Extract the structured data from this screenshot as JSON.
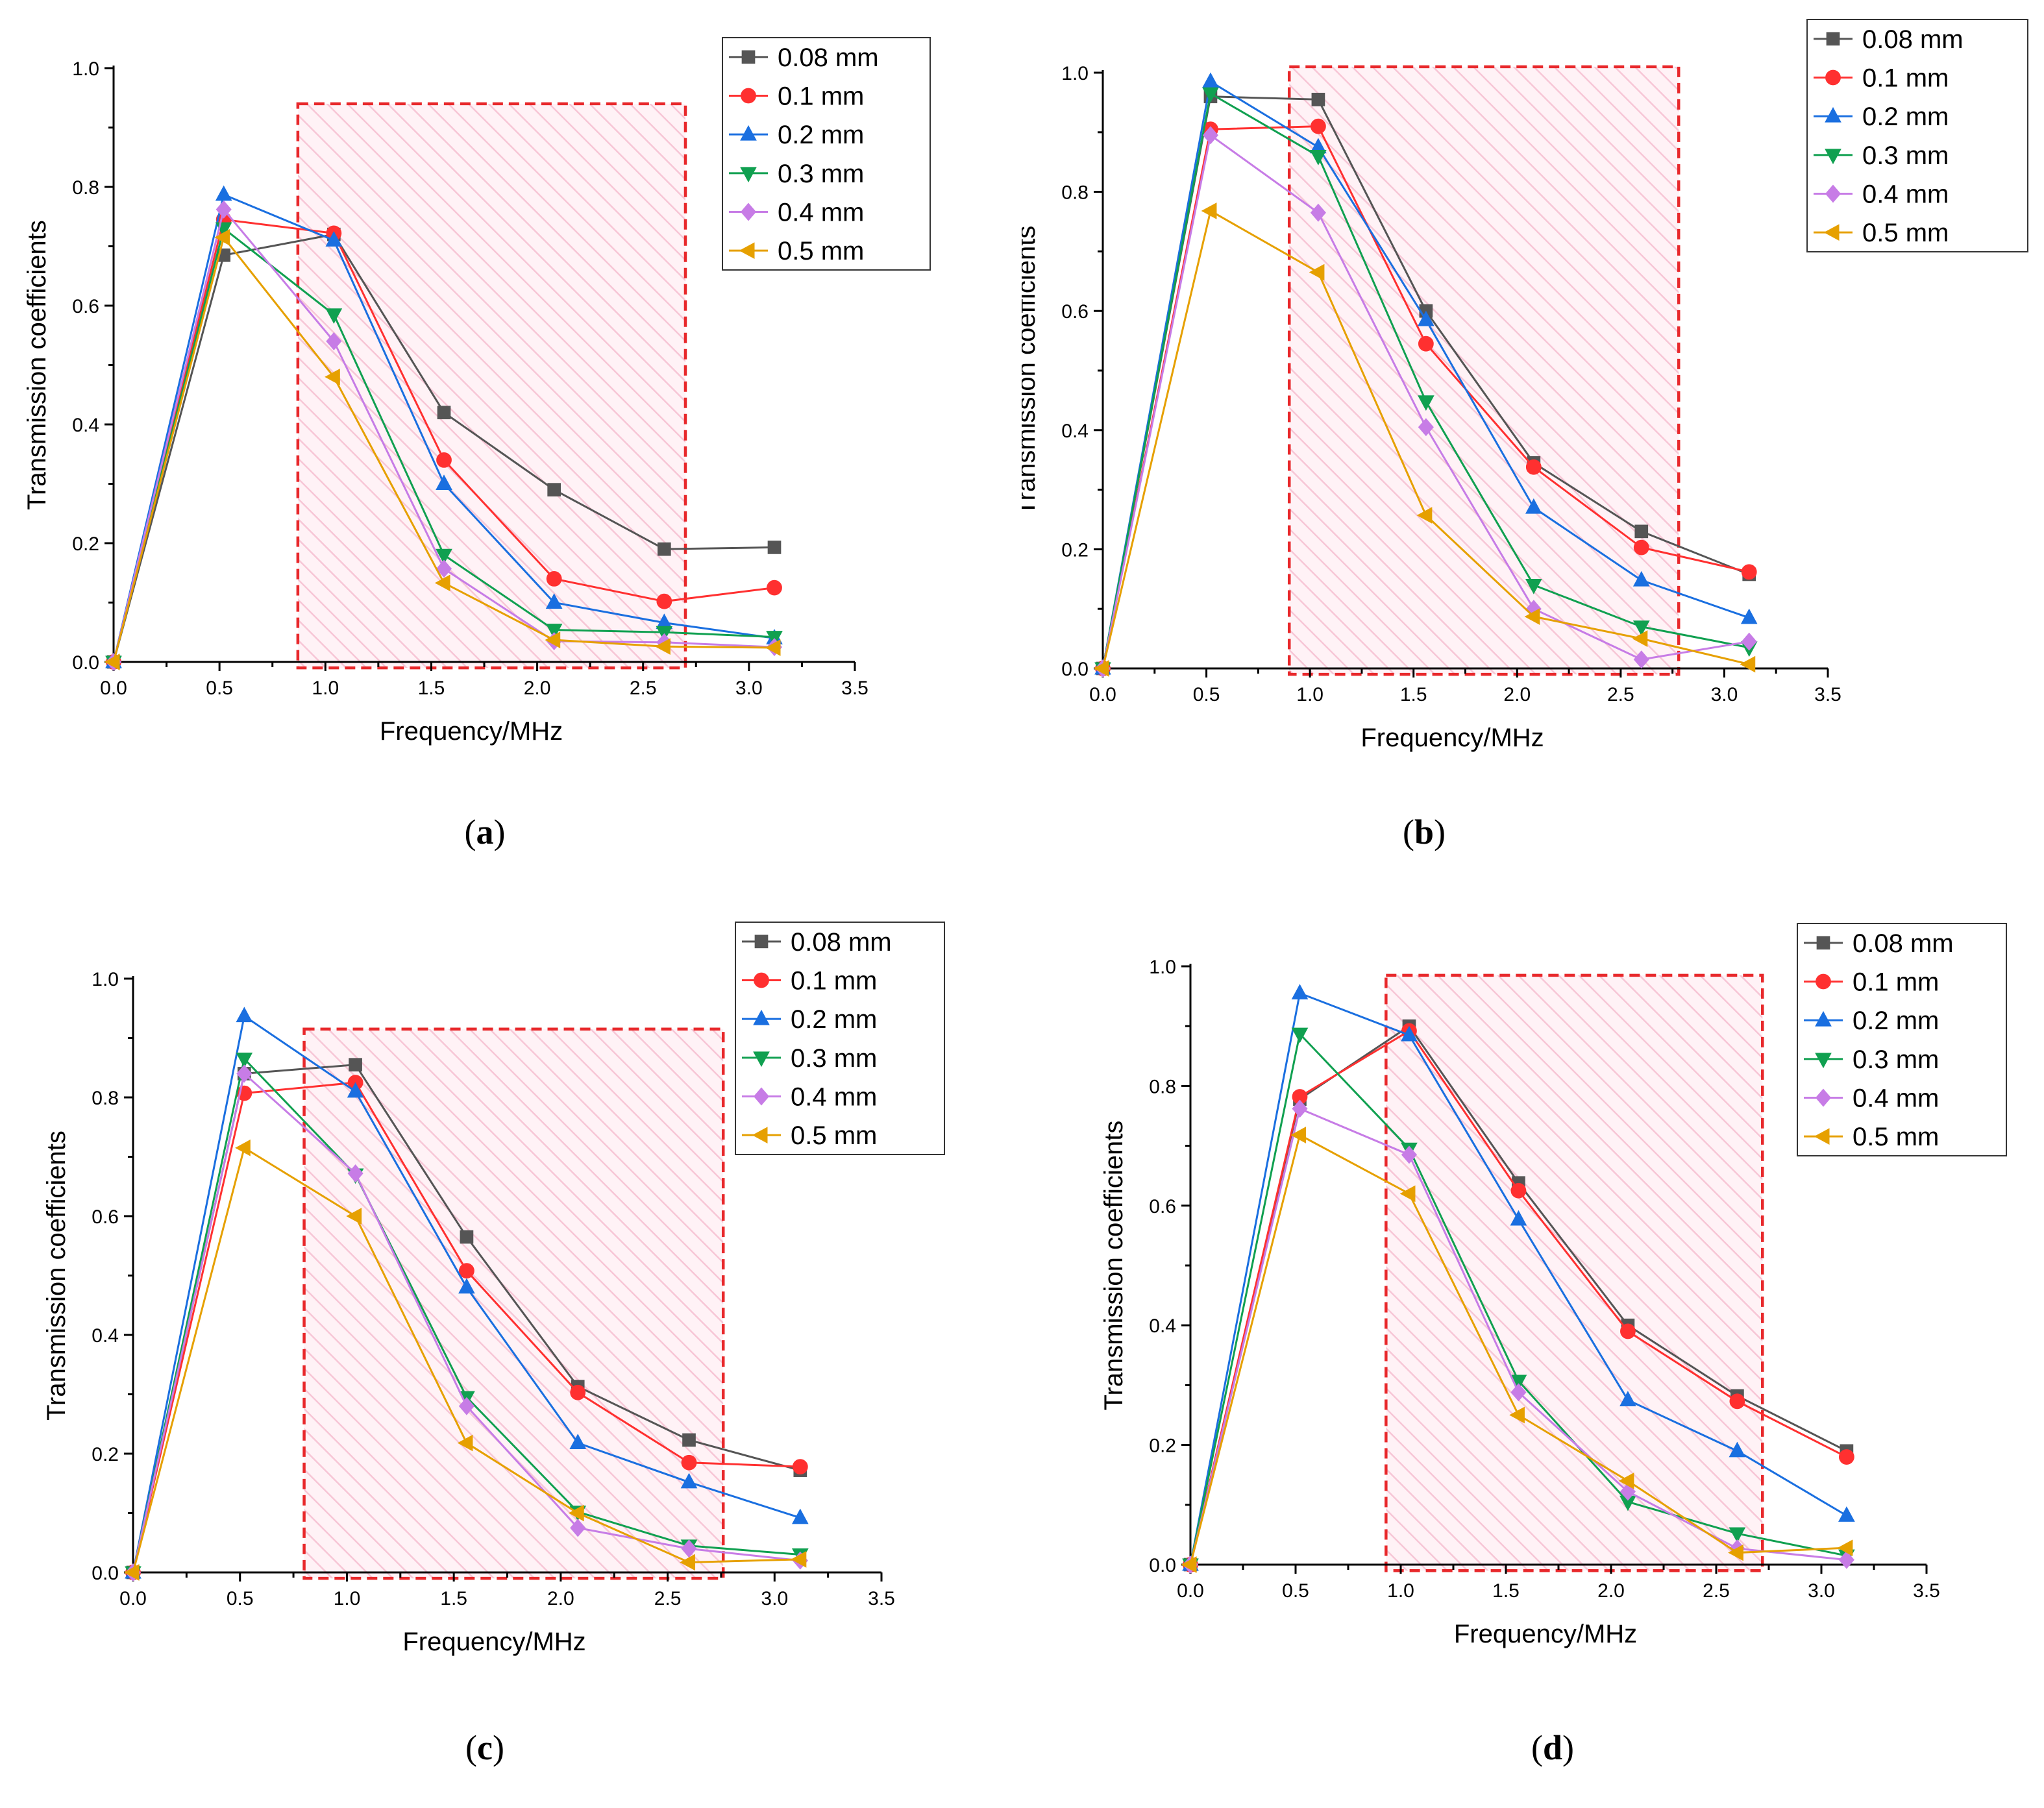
{
  "colors": {
    "series": [
      "#555555",
      "#ff3030",
      "#1a6fe0",
      "#10a050",
      "#c77ce6",
      "#e6a000"
    ],
    "shade_fill": "#f7c6d6",
    "shade_border": "#e8282b"
  },
  "chart_data": [
    {
      "type": "line",
      "panel_label": "a",
      "xlabel": "Frequency/MHz",
      "ylabel": "Transmission coefficients",
      "xlim": [
        0,
        3.5
      ],
      "ylim": [
        0,
        1.0
      ],
      "x_ticks": [
        "0.0",
        "0.5",
        "1.0",
        "1.5",
        "2.0",
        "2.5",
        "3.0",
        "3.5"
      ],
      "y_ticks": [
        "0.0",
        "0.2",
        "0.4",
        "0.6",
        "0.8",
        "1.0"
      ],
      "x": [
        0,
        0.52,
        1.04,
        1.56,
        2.08,
        2.6,
        3.12
      ],
      "shaded_region": {
        "x_range": [
          0.87,
          2.7
        ],
        "y_range": [
          -0.01,
          0.94
        ]
      },
      "legend": "top-right",
      "series": [
        {
          "name": "0.08 mm",
          "marker": "square",
          "values": [
            0,
            0.685,
            0.72,
            0.42,
            0.29,
            0.19,
            0.193
          ]
        },
        {
          "name": "0.1 mm",
          "marker": "circle",
          "values": [
            0,
            0.745,
            0.722,
            0.34,
            0.14,
            0.102,
            0.125
          ]
        },
        {
          "name": "0.2 mm",
          "marker": "triangle-up",
          "values": [
            0,
            0.787,
            0.71,
            0.3,
            0.1,
            0.066,
            0.04
          ]
        },
        {
          "name": "0.3 mm",
          "marker": "triangle-down",
          "values": [
            0,
            0.73,
            0.585,
            0.18,
            0.054,
            0.05,
            0.042
          ]
        },
        {
          "name": "0.4 mm",
          "marker": "diamond",
          "values": [
            0,
            0.762,
            0.54,
            0.157,
            0.035,
            0.033,
            0.025
          ]
        },
        {
          "name": "0.5 mm",
          "marker": "triangle-left",
          "values": [
            0,
            0.715,
            0.48,
            0.133,
            0.037,
            0.026,
            0.024
          ]
        }
      ]
    },
    {
      "type": "line",
      "panel_label": "b",
      "xlabel": "Frequency/MHz",
      "ylabel": "Transmission coefficients",
      "xlim": [
        0,
        3.5
      ],
      "ylim": [
        0,
        1.0
      ],
      "x_ticks": [
        "0.0",
        "0.5",
        "1.0",
        "1.5",
        "2.0",
        "2.5",
        "3.0",
        "3.5"
      ],
      "y_ticks": [
        "0.0",
        "0.2",
        "0.4",
        "0.6",
        "0.8",
        "1.0"
      ],
      "x": [
        0,
        0.52,
        1.04,
        1.56,
        2.08,
        2.6,
        3.12
      ],
      "shaded_region": {
        "x_range": [
          0.9,
          2.78
        ],
        "y_range": [
          -0.01,
          1.01
        ]
      },
      "legend": "top-right",
      "series": [
        {
          "name": "0.08 mm",
          "marker": "square",
          "values": [
            0,
            0.96,
            0.955,
            0.6,
            0.345,
            0.23,
            0.158
          ]
        },
        {
          "name": "0.1 mm",
          "marker": "circle",
          "values": [
            0,
            0.905,
            0.91,
            0.545,
            0.338,
            0.203,
            0.162
          ]
        },
        {
          "name": "0.2 mm",
          "marker": "triangle-up",
          "values": [
            0,
            0.985,
            0.875,
            0.585,
            0.27,
            0.148,
            0.085
          ]
        },
        {
          "name": "0.3 mm",
          "marker": "triangle-down",
          "values": [
            0,
            0.965,
            0.86,
            0.448,
            0.14,
            0.07,
            0.035
          ]
        },
        {
          "name": "0.4 mm",
          "marker": "diamond",
          "values": [
            0,
            0.895,
            0.765,
            0.405,
            0.1,
            0.015,
            0.045
          ]
        },
        {
          "name": "0.5 mm",
          "marker": "triangle-left",
          "values": [
            0,
            0.768,
            0.665,
            0.257,
            0.087,
            0.05,
            0.007
          ]
        }
      ]
    },
    {
      "type": "line",
      "panel_label": "c",
      "xlabel": "Frequency/MHz",
      "ylabel": "Transmission coefficients",
      "xlim": [
        0,
        3.5
      ],
      "ylim": [
        0,
        1.0
      ],
      "x_ticks": [
        "0.0",
        "0.5",
        "1.0",
        "1.5",
        "2.0",
        "2.5",
        "3.0",
        "3.5"
      ],
      "y_ticks": [
        "0.0",
        "0.2",
        "0.4",
        "0.6",
        "0.8",
        "1.0"
      ],
      "x": [
        0,
        0.52,
        1.04,
        1.56,
        2.08,
        2.6,
        3.12
      ],
      "shaded_region": {
        "x_range": [
          0.8,
          2.76
        ],
        "y_range": [
          -0.01,
          0.915
        ]
      },
      "legend": "top-right",
      "series": [
        {
          "name": "0.08 mm",
          "marker": "square",
          "values": [
            0,
            0.84,
            0.855,
            0.565,
            0.313,
            0.223,
            0.172
          ]
        },
        {
          "name": "0.1 mm",
          "marker": "circle",
          "values": [
            0,
            0.807,
            0.825,
            0.508,
            0.303,
            0.185,
            0.178
          ]
        },
        {
          "name": "0.2 mm",
          "marker": "triangle-up",
          "values": [
            0,
            0.937,
            0.81,
            0.48,
            0.218,
            0.152,
            0.092
          ]
        },
        {
          "name": "0.3 mm",
          "marker": "triangle-down",
          "values": [
            0,
            0.865,
            0.67,
            0.295,
            0.102,
            0.045,
            0.03
          ]
        },
        {
          "name": "0.4 mm",
          "marker": "diamond",
          "values": [
            0,
            0.84,
            0.672,
            0.28,
            0.075,
            0.04,
            0.02
          ]
        },
        {
          "name": "0.5 mm",
          "marker": "triangle-left",
          "values": [
            0,
            0.715,
            0.6,
            0.218,
            0.1,
            0.017,
            0.022
          ]
        }
      ]
    },
    {
      "type": "line",
      "panel_label": "d",
      "xlabel": "Frequency/MHz",
      "ylabel": "Transmission coefficients",
      "xlim": [
        0,
        3.5
      ],
      "ylim": [
        0,
        1.0
      ],
      "x_ticks": [
        "0.0",
        "0.5",
        "1.0",
        "1.5",
        "2.0",
        "2.5",
        "3.0",
        "3.5"
      ],
      "y_ticks": [
        "0.0",
        "0.2",
        "0.4",
        "0.6",
        "0.8",
        "1.0"
      ],
      "x": [
        0,
        0.52,
        1.04,
        1.56,
        2.08,
        2.6,
        3.12
      ],
      "shaded_region": {
        "x_range": [
          0.93,
          2.72
        ],
        "y_range": [
          -0.01,
          0.985
        ]
      },
      "legend": "top-right",
      "series": [
        {
          "name": "0.08 mm",
          "marker": "square",
          "values": [
            0,
            0.778,
            0.9,
            0.638,
            0.4,
            0.282,
            0.19
          ]
        },
        {
          "name": "0.1 mm",
          "marker": "circle",
          "values": [
            0,
            0.782,
            0.892,
            0.625,
            0.39,
            0.273,
            0.18
          ]
        },
        {
          "name": "0.2 mm",
          "marker": "triangle-up",
          "values": [
            0,
            0.955,
            0.885,
            0.577,
            0.275,
            0.19,
            0.082
          ]
        },
        {
          "name": "0.3 mm",
          "marker": "triangle-down",
          "values": [
            0,
            0.887,
            0.695,
            0.307,
            0.105,
            0.052,
            0.015
          ]
        },
        {
          "name": "0.4 mm",
          "marker": "diamond",
          "values": [
            0,
            0.762,
            0.685,
            0.288,
            0.122,
            0.027,
            0.008
          ]
        },
        {
          "name": "0.5 mm",
          "marker": "triangle-left",
          "values": [
            0,
            0.718,
            0.62,
            0.25,
            0.14,
            0.02,
            0.028
          ]
        }
      ]
    }
  ]
}
